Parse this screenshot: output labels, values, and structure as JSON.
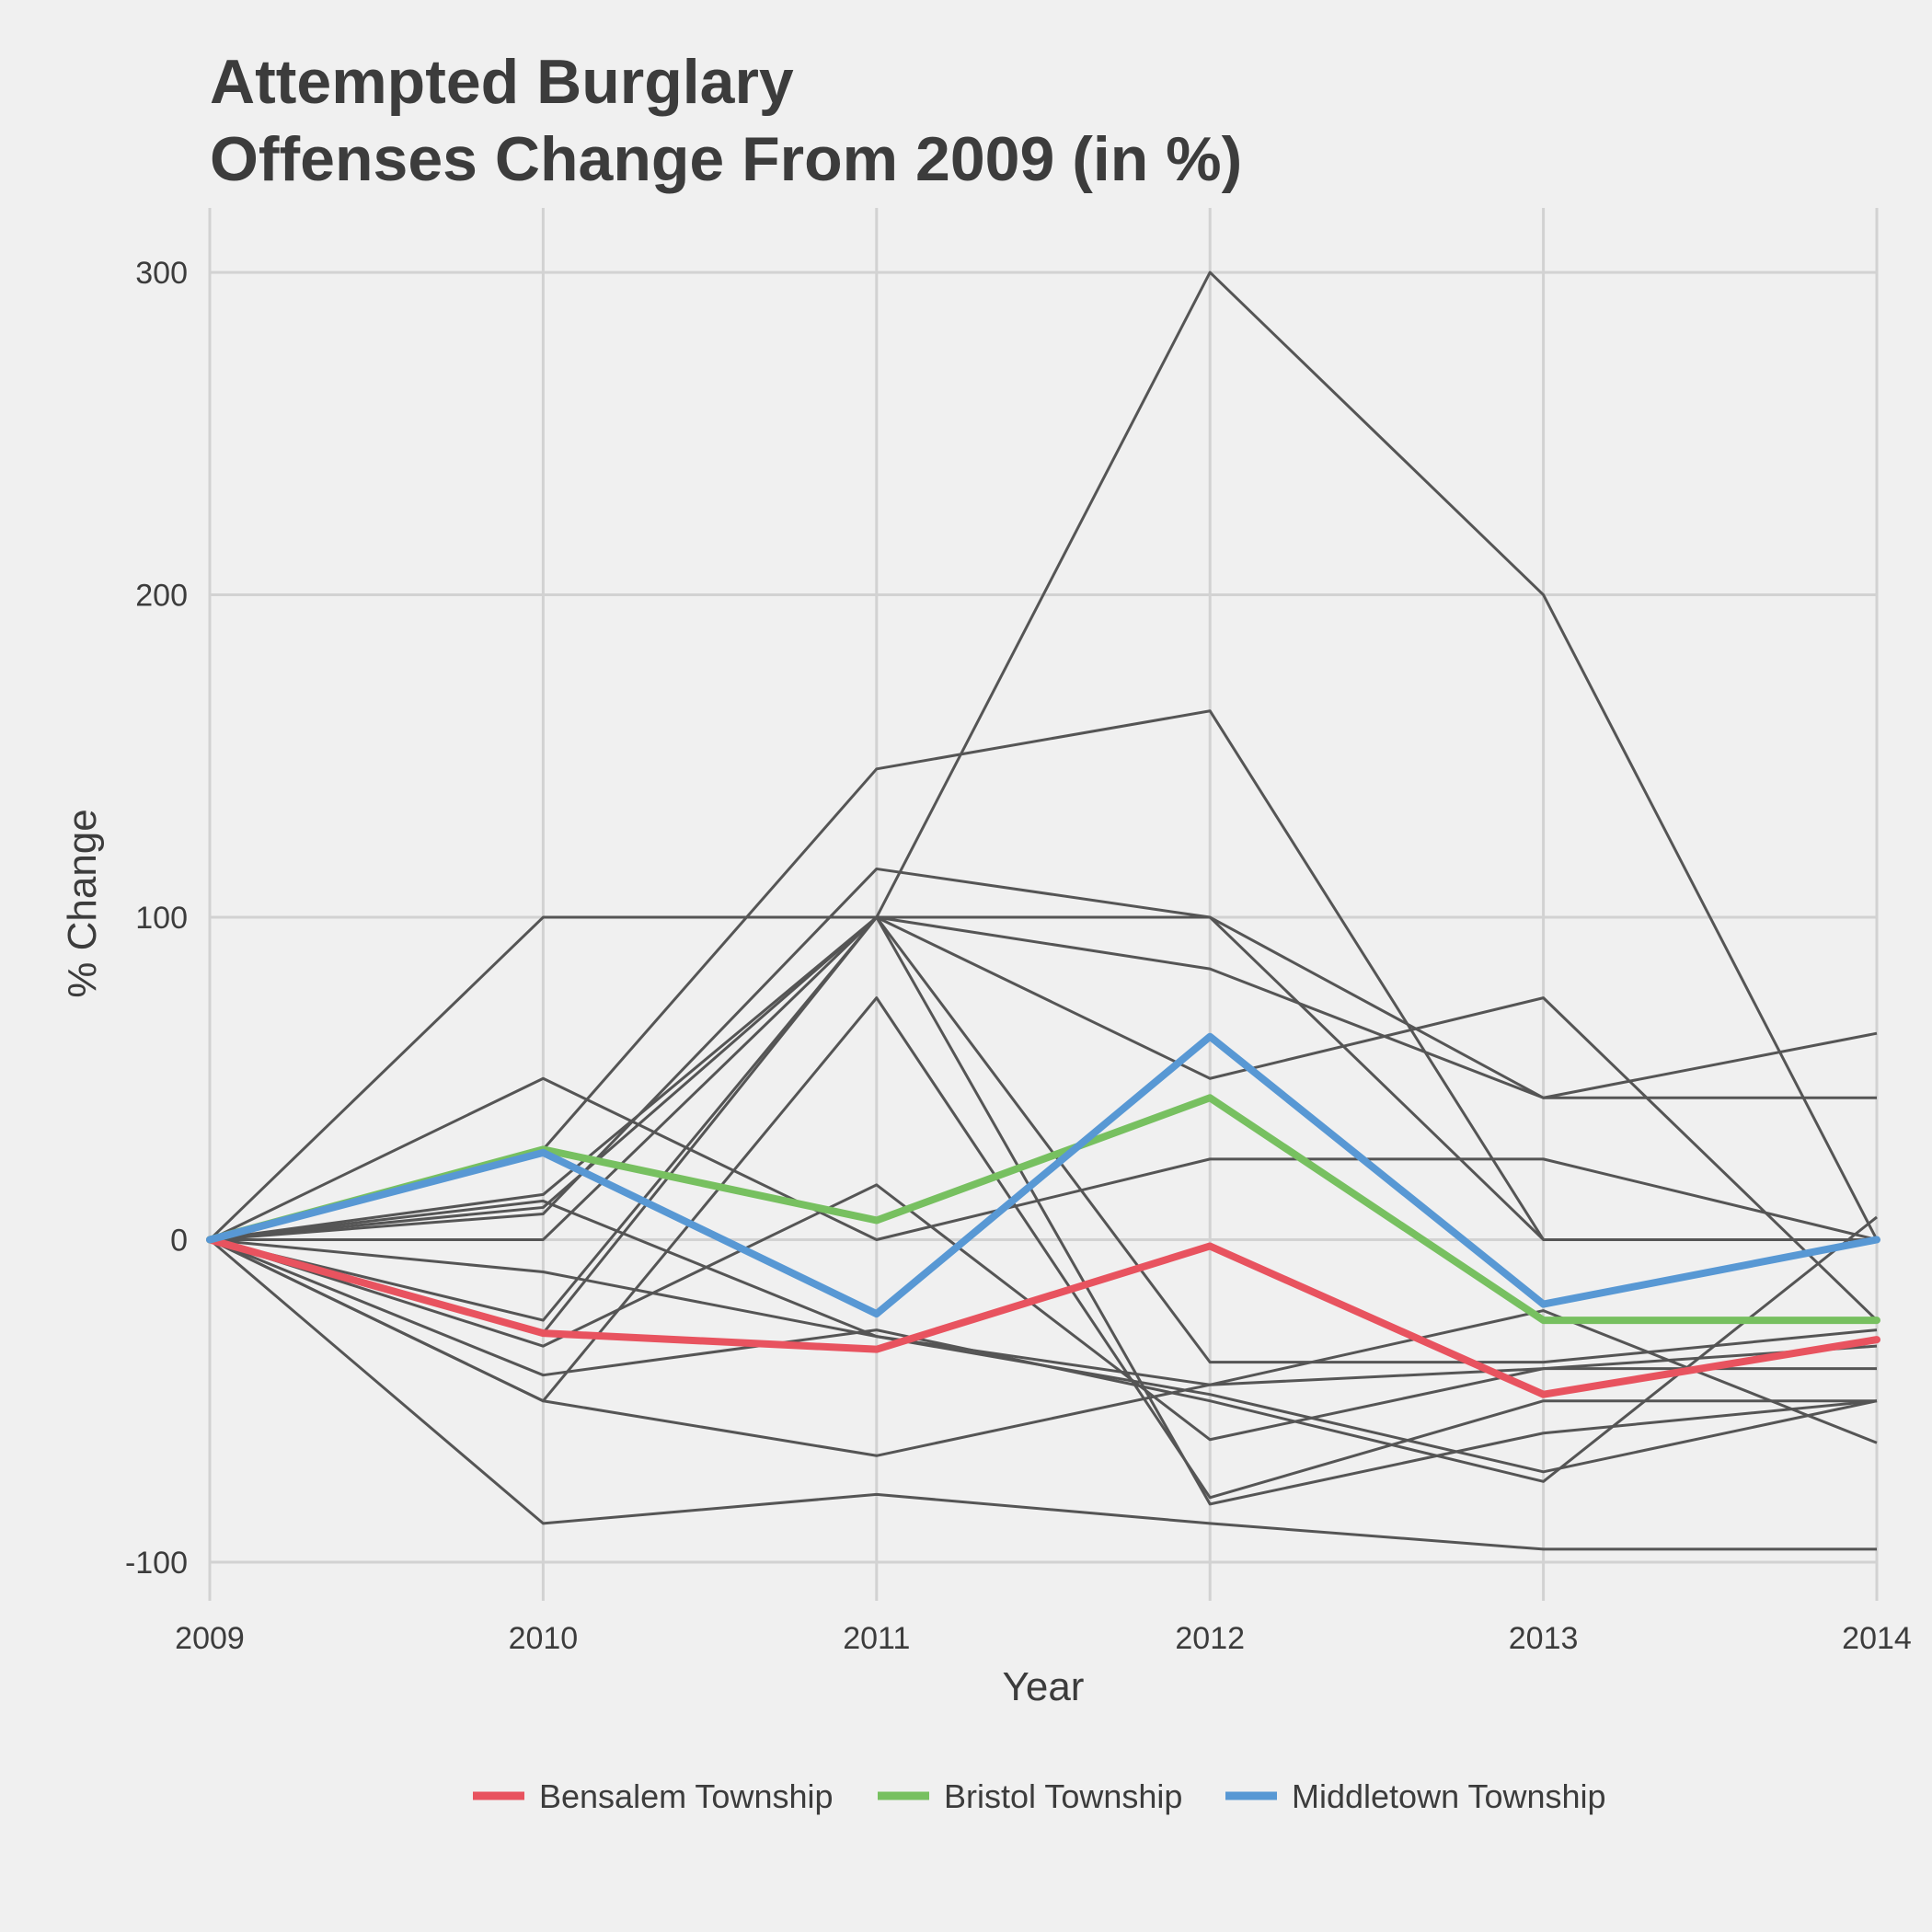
{
  "chart_data": {
    "type": "line",
    "title_line1": "Attempted Burglary",
    "title_line2": "Offenses Change From 2009 (in %)",
    "xlabel": "Year",
    "ylabel": "% Change",
    "x": [
      2009,
      2010,
      2011,
      2012,
      2013,
      2014
    ],
    "x_tick_labels": [
      "2009",
      "2010",
      "2011",
      "2012",
      "2013",
      "2014"
    ],
    "y_ticks": [
      -100,
      0,
      100,
      200,
      300
    ],
    "y_tick_labels": [
      "-100",
      "0",
      "100",
      "200",
      "300"
    ],
    "xlim": [
      2009,
      2014
    ],
    "ylim": [
      -112,
      320
    ],
    "grid": true,
    "legend_position": "bottom",
    "background_series_color": "#555555",
    "background_series": [
      {
        "values": [
          0,
          100,
          100,
          100,
          0,
          0
        ]
      },
      {
        "values": [
          0,
          50,
          0,
          25,
          25,
          0
        ]
      },
      {
        "values": [
          0,
          28,
          146,
          164,
          0,
          0
        ]
      },
      {
        "values": [
          0,
          10,
          100,
          300,
          200,
          0
        ]
      },
      {
        "values": [
          0,
          14,
          100,
          84,
          44,
          44
        ]
      },
      {
        "values": [
          0,
          8,
          115,
          100,
          44,
          64
        ]
      },
      {
        "values": [
          0,
          -25,
          100,
          50,
          75,
          -25
        ]
      },
      {
        "values": [
          0,
          -10,
          -30,
          -48,
          -72,
          -50
        ]
      },
      {
        "values": [
          0,
          -33,
          17,
          -62,
          -40,
          -33
        ]
      },
      {
        "values": [
          0,
          12,
          -30,
          -45,
          -40,
          -40
        ]
      },
      {
        "values": [
          0,
          -42,
          -28,
          -50,
          -75,
          7
        ]
      },
      {
        "values": [
          0,
          -50,
          75,
          -80,
          -50,
          -50
        ]
      },
      {
        "values": [
          0,
          -50,
          -67,
          -45,
          -22,
          -63
        ]
      },
      {
        "values": [
          0,
          0,
          100,
          -38,
          -38,
          -28
        ]
      },
      {
        "values": [
          0,
          -29,
          100,
          -82,
          -60,
          -50
        ]
      },
      {
        "values": [
          0,
          -88,
          -79,
          -88,
          -96,
          -96
        ]
      }
    ],
    "series": [
      {
        "name": "Bensalem Township",
        "color": "#e8535f",
        "values": [
          0,
          -29,
          -34,
          -2,
          -48,
          -31
        ]
      },
      {
        "name": "Bristol Township",
        "color": "#77c060",
        "values": [
          0,
          28,
          6,
          44,
          -25,
          -25
        ]
      },
      {
        "name": "Middletown Township",
        "color": "#5898d4",
        "values": [
          0,
          27,
          -23,
          63,
          -20,
          0
        ]
      }
    ]
  }
}
